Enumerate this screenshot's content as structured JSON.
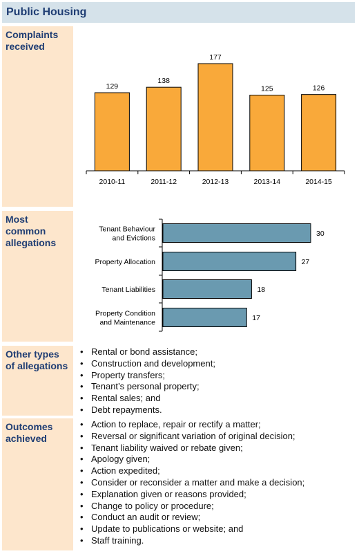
{
  "title": "Public Housing",
  "sections": {
    "complaints_label": "Complaints received",
    "allegations_label": "Most common allegations",
    "other_label": "Other types of allegations",
    "outcomes_label": "Outcomes achieved"
  },
  "other_allegations": [
    "Rental or bond assistance;",
    "Construction and development;",
    "Property transfers;",
    "Tenant’s personal property;",
    "Rental sales; and",
    "Debt repayments."
  ],
  "outcomes": [
    "Action to replace, repair or rectify a matter;",
    "Reversal or significant variation of original decision;",
    "Tenant liability waived or rebate given;",
    "Apology given;",
    "Action expedited;",
    "Consider or reconsider a matter and make a decision;",
    "Explanation given or reasons provided;",
    "Change to policy or procedure;",
    "Conduct an audit or review;",
    "Update to publications or website; and",
    "Staff training."
  ],
  "chart_data": [
    {
      "type": "bar",
      "orientation": "vertical",
      "categories": [
        "2010-11",
        "2011-12",
        "2012-13",
        "2013-14",
        "2014-15"
      ],
      "values": [
        129,
        138,
        177,
        125,
        126
      ],
      "ylim": [
        0,
        200
      ],
      "grid": false,
      "data_labels": true,
      "color": "#f9a93a"
    },
    {
      "type": "bar",
      "orientation": "horizontal",
      "categories": [
        [
          "Tenant Behaviour",
          "and Evictions"
        ],
        [
          "Property Allocation"
        ],
        [
          "Tenant Liabilities"
        ],
        [
          "Property Condition",
          "and Maintenance"
        ]
      ],
      "values": [
        30,
        27,
        18,
        17
      ],
      "xlim": [
        0,
        32
      ],
      "grid": false,
      "data_labels": true,
      "color": "#6a9ab0"
    }
  ]
}
